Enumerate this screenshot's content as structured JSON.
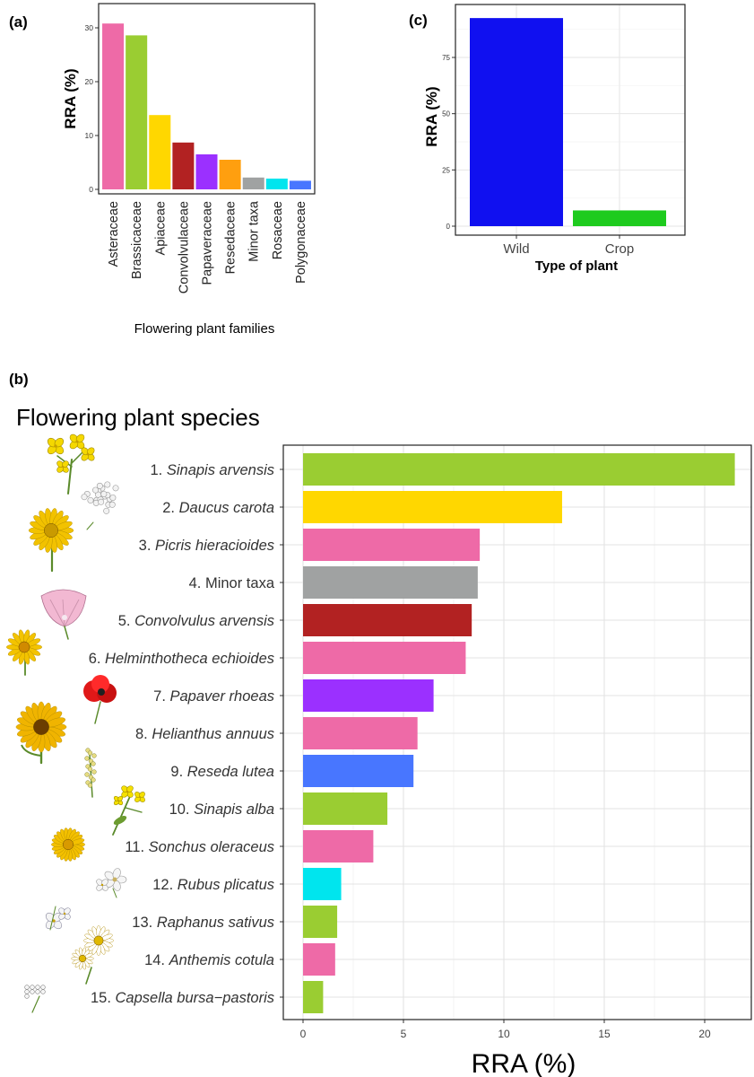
{
  "panel_labels": {
    "a": "(a)",
    "b": "(b)",
    "c": "(c)"
  },
  "chart_data": [
    {
      "id": "a",
      "type": "bar",
      "ylabel": "RRA (%)",
      "xlabel": "Flowering plant families",
      "ylim": [
        0,
        32
      ],
      "yticks": [
        0,
        10,
        20,
        30
      ],
      "grid": false,
      "categories": [
        "Asteraceae",
        "Brassicaceae",
        "Apiaceae",
        "Convolvulaceae",
        "Papaveraceae",
        "Resedaceae",
        "Minor taxa",
        "Rosaceae",
        "Polygonaceae"
      ],
      "values": [
        30.8,
        28.6,
        13.8,
        8.7,
        6.5,
        5.5,
        2.2,
        2.0,
        1.6
      ],
      "colors": [
        "#ee6aa7",
        "#9acd32",
        "#ffd700",
        "#b22222",
        "#9b30ff",
        "#ff9f0f",
        "#a0a2a2",
        "#00e5ee",
        "#4876ff"
      ]
    },
    {
      "id": "c",
      "type": "bar",
      "ylabel": "RRA (%)",
      "xlabel": "Type of plant",
      "ylim": [
        0,
        97
      ],
      "yticks": [
        0,
        25,
        50,
        75
      ],
      "grid": true,
      "categories": [
        "Wild",
        "Crop"
      ],
      "values": [
        92.5,
        7.0
      ],
      "colors": [
        "#1010f0",
        "#1ecb1e"
      ]
    },
    {
      "id": "b",
      "type": "bar",
      "orientation": "horizontal",
      "title": "Flowering plant species",
      "xlabel": "RRA (%)",
      "xlim": [
        -1,
        22.3
      ],
      "xticks": [
        0,
        5,
        10,
        15,
        20
      ],
      "grid": true,
      "categories": [
        {
          "num": "1. ",
          "name": "Sinapis arvensis",
          "italic": true
        },
        {
          "num": "2. ",
          "name": "Daucus carota",
          "italic": true
        },
        {
          "num": "3. ",
          "name": "Picris hieracioides",
          "italic": true
        },
        {
          "num": "4. ",
          "name": "Minor taxa",
          "italic": false
        },
        {
          "num": "5. ",
          "name": "Convolvulus arvensis",
          "italic": true
        },
        {
          "num": "6. ",
          "name": "Helminthotheca echioides",
          "italic": true
        },
        {
          "num": "7. ",
          "name": "Papaver rhoeas",
          "italic": true
        },
        {
          "num": "8. ",
          "name": "Helianthus annuus",
          "italic": true
        },
        {
          "num": "9. ",
          "name": "Reseda lutea",
          "italic": true
        },
        {
          "num": "10. ",
          "name": "Sinapis alba",
          "italic": true
        },
        {
          "num": "11. ",
          "name": "Sonchus oleraceus",
          "italic": true
        },
        {
          "num": "12. ",
          "name": "Rubus plicatus",
          "italic": true
        },
        {
          "num": "13. ",
          "name": "Raphanus sativus",
          "italic": true
        },
        {
          "num": "14. ",
          "name": "Anthemis cotula",
          "italic": true
        },
        {
          "num": "15. ",
          "name": "Capsella bursa−pastoris",
          "italic": true
        }
      ],
      "values": [
        21.5,
        12.9,
        8.8,
        8.7,
        8.4,
        8.1,
        6.5,
        5.7,
        5.5,
        4.2,
        3.5,
        1.9,
        1.7,
        1.6,
        1.0
      ],
      "colors": [
        "#9acd32",
        "#ffd700",
        "#ee6aa7",
        "#a0a2a2",
        "#b22222",
        "#ee6aa7",
        "#9b30ff",
        "#ee6aa7",
        "#4876ff",
        "#9acd32",
        "#ee6aa7",
        "#00e5ee",
        "#9acd32",
        "#ee6aa7",
        "#9acd32"
      ]
    }
  ],
  "illustrations": [
    {
      "icon": "yellow-flower-cluster-icon",
      "color": "#f5d800"
    },
    {
      "icon": "white-umbel-icon",
      "color": "#f2f2f2"
    },
    {
      "icon": "yellow-composite-flower-icon",
      "color": "#f2c200"
    },
    {
      "icon": "pink-funnel-flower-icon",
      "color": "#f2b8d2"
    },
    {
      "icon": "yellow-daisy-icon",
      "color": "#f3c300"
    },
    {
      "icon": "red-poppy-icon",
      "color": "#e01818"
    },
    {
      "icon": "sunflower-icon",
      "color": "#f0b400"
    },
    {
      "icon": "yellow-spike-flower-icon",
      "color": "#e6dc80"
    },
    {
      "icon": "yellow-crucifer-icon",
      "color": "#f5e000"
    },
    {
      "icon": "yellow-dandelion-icon",
      "color": "#f3c000"
    },
    {
      "icon": "white-bramble-flower-icon",
      "color": "#f5f5f5"
    },
    {
      "icon": "white-radish-flower-icon",
      "color": "#f5f5f5"
    },
    {
      "icon": "white-chamomile-icon",
      "color": "#ffffff"
    },
    {
      "icon": "white-shepherds-purse-icon",
      "color": "#f5f5f5"
    }
  ]
}
